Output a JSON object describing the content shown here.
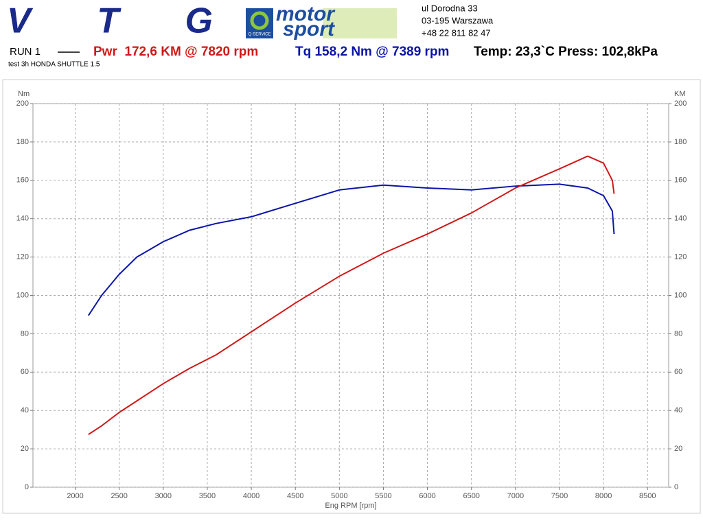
{
  "header": {
    "logo_left": "V T G",
    "logo_motor": "motor",
    "logo_sport": "sport",
    "logo_service": "Q-SERVICE",
    "address": [
      "ul Dorodna 33",
      "03-195 Warszawa",
      "+48 22 811 82 47"
    ],
    "run": "RUN 1",
    "conditions": "Temp: 23,3`C Press: 102,8kPa",
    "test": "test 3h HONDA SHUTTLE 1.5"
  },
  "chart_data": {
    "type": "line",
    "x_label": "Eng RPM [rpm]",
    "y_label": "Nm",
    "y2_label": "KM",
    "x": [
      2150,
      2300,
      2500,
      2700,
      3000,
      3300,
      3600,
      4000,
      4500,
      5000,
      5500,
      6000,
      6500,
      7000,
      7500,
      7820,
      8000,
      8100,
      8120
    ],
    "series": [
      {
        "name": "Tq 158,2 Nm @ 7389 rpm",
        "color": "#0a14a8",
        "axis": "y",
        "values": [
          89.5,
          100,
          111,
          120,
          128,
          134,
          137.5,
          141,
          148,
          155,
          157.5,
          156,
          155,
          157,
          158,
          156,
          152,
          144,
          132
        ]
      },
      {
        "name": "Pwr  172,6 KM @ 7820 rpm",
        "color": "#d01818",
        "axis": "y2",
        "values": [
          27.5,
          32,
          39,
          45,
          54,
          62,
          69,
          81,
          96,
          110,
          122,
          132,
          143,
          156,
          166,
          172.6,
          169,
          160,
          153
        ]
      }
    ],
    "xlim": [
      1520,
      8740
    ],
    "xticks": [
      2000,
      2500,
      3000,
      3500,
      4000,
      4500,
      5000,
      5500,
      6000,
      6500,
      7000,
      7500,
      8000,
      8500
    ],
    "ylim": [
      0,
      200
    ],
    "yticks": [
      0,
      20,
      40,
      60,
      80,
      100,
      120,
      140,
      160,
      180,
      200
    ],
    "y2lim": [
      0,
      200
    ],
    "y2ticks": [
      0,
      20,
      40,
      60,
      80,
      100,
      120,
      140,
      160,
      180,
      200
    ],
    "grid": true
  }
}
